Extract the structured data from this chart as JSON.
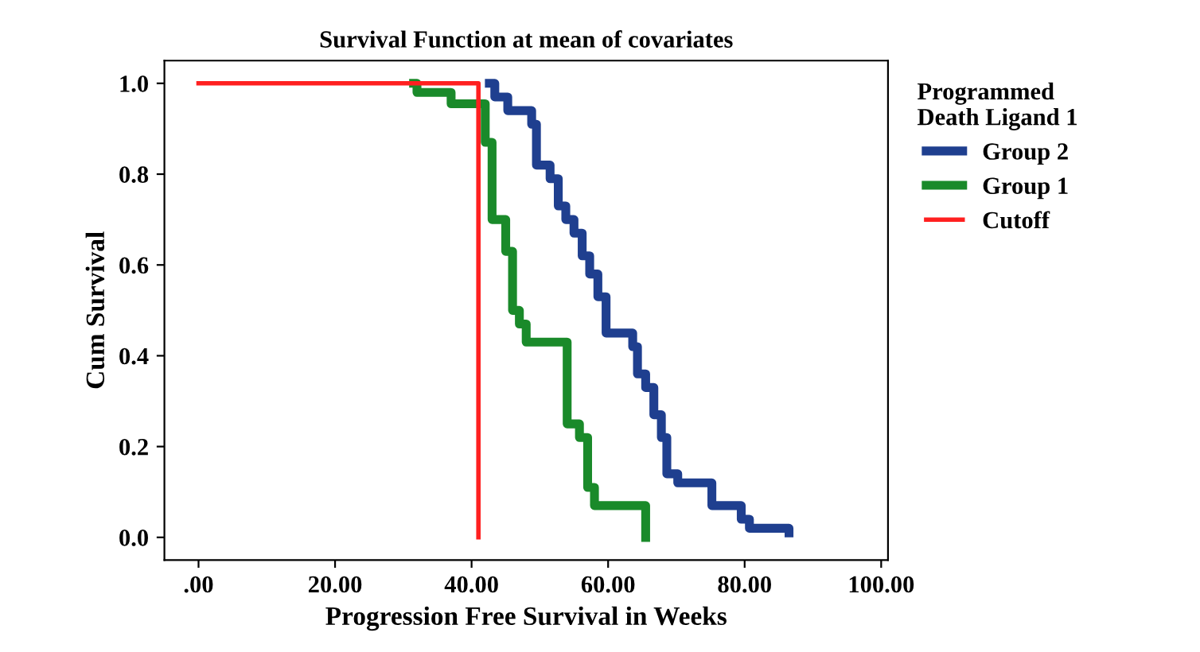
{
  "chart_data": {
    "type": "step",
    "title": "Survival Function at mean of covariates",
    "xlabel": "Progression Free Survival in Weeks",
    "ylabel": "Cum Survival",
    "legend_title": "Programmed\nDeath Ligand 1",
    "series": [
      {
        "name": "Group 2",
        "color": "#1f3f8f",
        "x": [
          42.6,
          43.4,
          45.3,
          48.8,
          49.5,
          51.5,
          52.7,
          53.8,
          55,
          56.2,
          57.3,
          58.5,
          59.7,
          63.6,
          64.3,
          65.5,
          66.7,
          67.8,
          68.6,
          70.2,
          75.2,
          79.5,
          80.7,
          86.5
        ],
        "values": [
          1.0,
          0.97,
          0.94,
          0.91,
          0.82,
          0.79,
          0.73,
          0.7,
          0.67,
          0.62,
          0.58,
          0.53,
          0.45,
          0.42,
          0.36,
          0.33,
          0.27,
          0.22,
          0.14,
          0.12,
          0.07,
          0.04,
          0.02,
          0.01
        ]
      },
      {
        "name": "Group 1",
        "color": "#1a8a2a",
        "x": [
          31.5,
          32,
          37,
          42,
          43,
          45,
          46,
          47,
          48,
          54,
          55.8,
          57,
          58,
          65.5
        ],
        "values": [
          1.0,
          0.98,
          0.955,
          0.87,
          0.7,
          0.63,
          0.5,
          0.47,
          0.43,
          0.25,
          0.22,
          0.11,
          0.07,
          0.0
        ]
      },
      {
        "name": "Cutoff",
        "color": "#ff2020",
        "x": [
          0,
          41
        ],
        "values": [
          1.0,
          0.0
        ]
      }
    ],
    "xlim": [
      -5,
      101
    ],
    "ylim": [
      -0.05,
      1.05
    ],
    "xticks": [
      {
        "value": 0,
        "label": ".00"
      },
      {
        "value": 20,
        "label": "20.00"
      },
      {
        "value": 40,
        "label": "40.00"
      },
      {
        "value": 60,
        "label": "60.00"
      },
      {
        "value": 80,
        "label": "80.00"
      },
      {
        "value": 100,
        "label": "100.00"
      }
    ],
    "yticks": [
      {
        "value": 0,
        "label": "0.0"
      },
      {
        "value": 0.2,
        "label": "0.2"
      },
      {
        "value": 0.4,
        "label": "0.4"
      },
      {
        "value": 0.6,
        "label": "0.6"
      },
      {
        "value": 0.8,
        "label": "0.8"
      },
      {
        "value": 1.0,
        "label": "1.0"
      }
    ],
    "grid": false,
    "legend": "top right"
  }
}
